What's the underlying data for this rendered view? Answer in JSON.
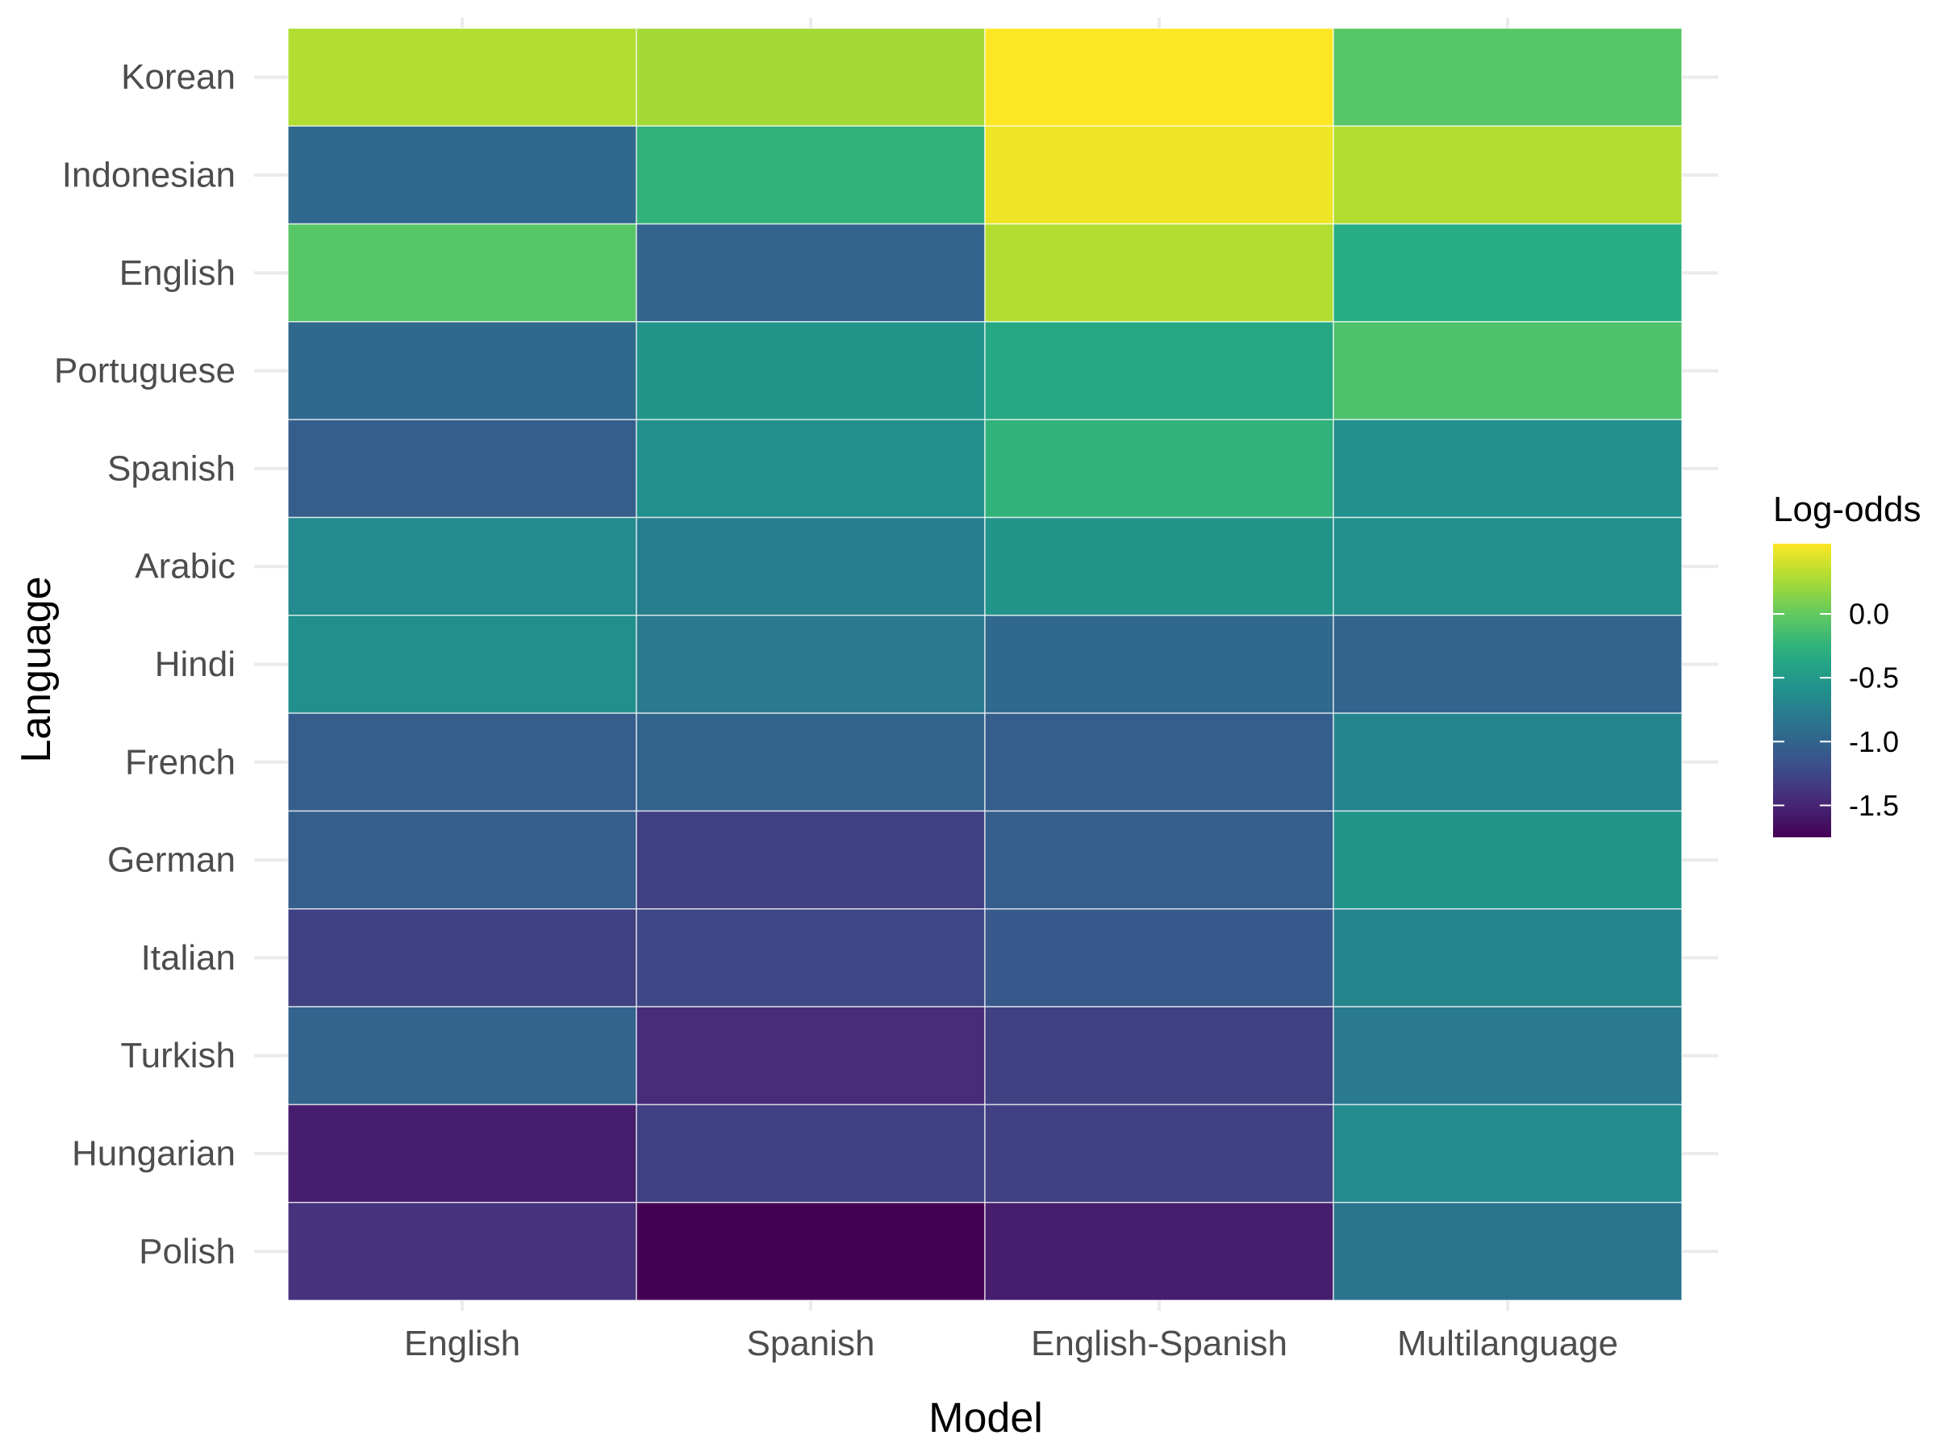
{
  "chart_data": {
    "type": "heatmap",
    "xlabel": "Model",
    "ylabel": "Language",
    "x_categories": [
      "English",
      "Spanish",
      "English-Spanish",
      "Multilanguage"
    ],
    "y_categories": [
      "Korean",
      "Indonesian",
      "English",
      "Portuguese",
      "Spanish",
      "Arabic",
      "Hindi",
      "French",
      "German",
      "Italian",
      "Turkish",
      "Hungarian",
      "Polish"
    ],
    "values": [
      [
        0.3,
        0.25,
        0.55,
        -0.05
      ],
      [
        -0.95,
        -0.25,
        0.5,
        0.3
      ],
      [
        -0.05,
        -1.0,
        0.3,
        -0.3
      ],
      [
        -0.95,
        -0.55,
        -0.35,
        -0.1
      ],
      [
        -1.05,
        -0.6,
        -0.25,
        -0.6
      ],
      [
        -0.65,
        -0.75,
        -0.55,
        -0.6
      ],
      [
        -0.6,
        -0.8,
        -0.95,
        -1.0
      ],
      [
        -1.05,
        -1.0,
        -1.05,
        -0.7
      ],
      [
        -1.05,
        -1.3,
        -1.05,
        -0.55
      ],
      [
        -1.3,
        -1.25,
        -1.1,
        -0.7
      ],
      [
        -1.0,
        -1.45,
        -1.3,
        -0.8
      ],
      [
        -1.55,
        -1.3,
        -1.3,
        -0.65
      ],
      [
        -1.4,
        -1.75,
        -1.55,
        -0.85
      ]
    ],
    "legend": {
      "title": "Log-odds",
      "position": "right",
      "min": -1.75,
      "max": 0.55,
      "ticks": [
        0.0,
        -0.5,
        -1.0,
        -1.5
      ],
      "tick_labels": [
        "0.0",
        "-0.5",
        "-1.0",
        "-1.5"
      ]
    },
    "colormap": "viridis",
    "grid": true
  }
}
